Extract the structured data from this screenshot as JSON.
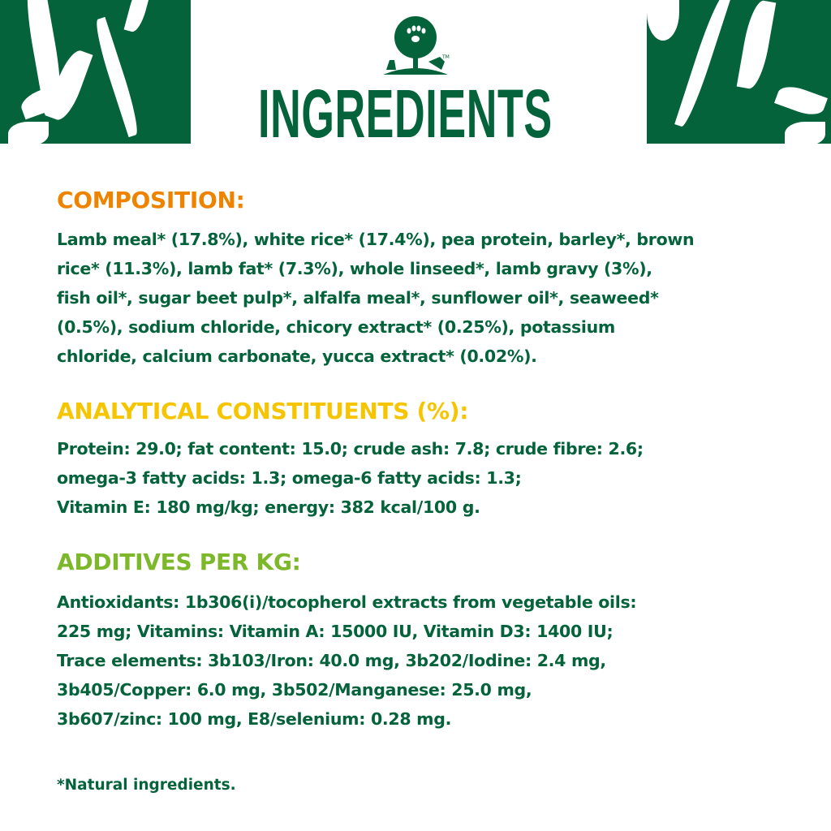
{
  "header": {
    "title": "INGREDIENTS",
    "logo_name": "tree-paw-cat-dog-logo",
    "logo_mark": "TM",
    "brand_color": "#04633a"
  },
  "composition": {
    "heading": "COMPOSITION:",
    "heading_color": "#ee8300",
    "lines": [
      "Lamb meal* (17.8%), white rice* (17.4%), pea protein, barley*, brown",
      "rice* (11.3%), lamb fat* (7.3%), whole linseed*, lamb gravy (3%),",
      "fish oil*, sugar beet pulp*, alfalfa meal*, sunflower oil*, seaweed*",
      "(0.5%), sodium chloride, chicory extract* (0.25%), potassium",
      "chloride, calcium carbonate, yucca extract* (0.02%)."
    ]
  },
  "analytical": {
    "heading": "ANALYTICAL CONSTITUENTS (%):",
    "heading_color": "#f6c500",
    "lines": [
      "Protein: 29.0; fat content: 15.0; crude ash: 7.8; crude fibre: 2.6;",
      "omega-3 fatty acids: 1.3; omega-6 fatty acids: 1.3;",
      "Vitamin E: 180 mg/kg; energy: 382 kcal/100 g."
    ]
  },
  "additives": {
    "heading": "ADDITIVES PER KG:",
    "heading_color": "#7cb82a",
    "lines": [
      "Antioxidants: 1b306(i)/tocopherol extracts from vegetable oils:",
      "225 mg; Vitamins: Vitamin A: 15000 IU, Vitamin D3: 1400 IU;",
      "Trace elements: 3b103/Iron: 40.0 mg, 3b202/Iodine: 2.4 mg,",
      "3b405/Copper: 6.0 mg, 3b502/Manganese: 25.0 mg,",
      "3b607/zinc: 100 mg, E8/selenium: 0.28 mg."
    ]
  },
  "footnote": "*Natural ingredients."
}
